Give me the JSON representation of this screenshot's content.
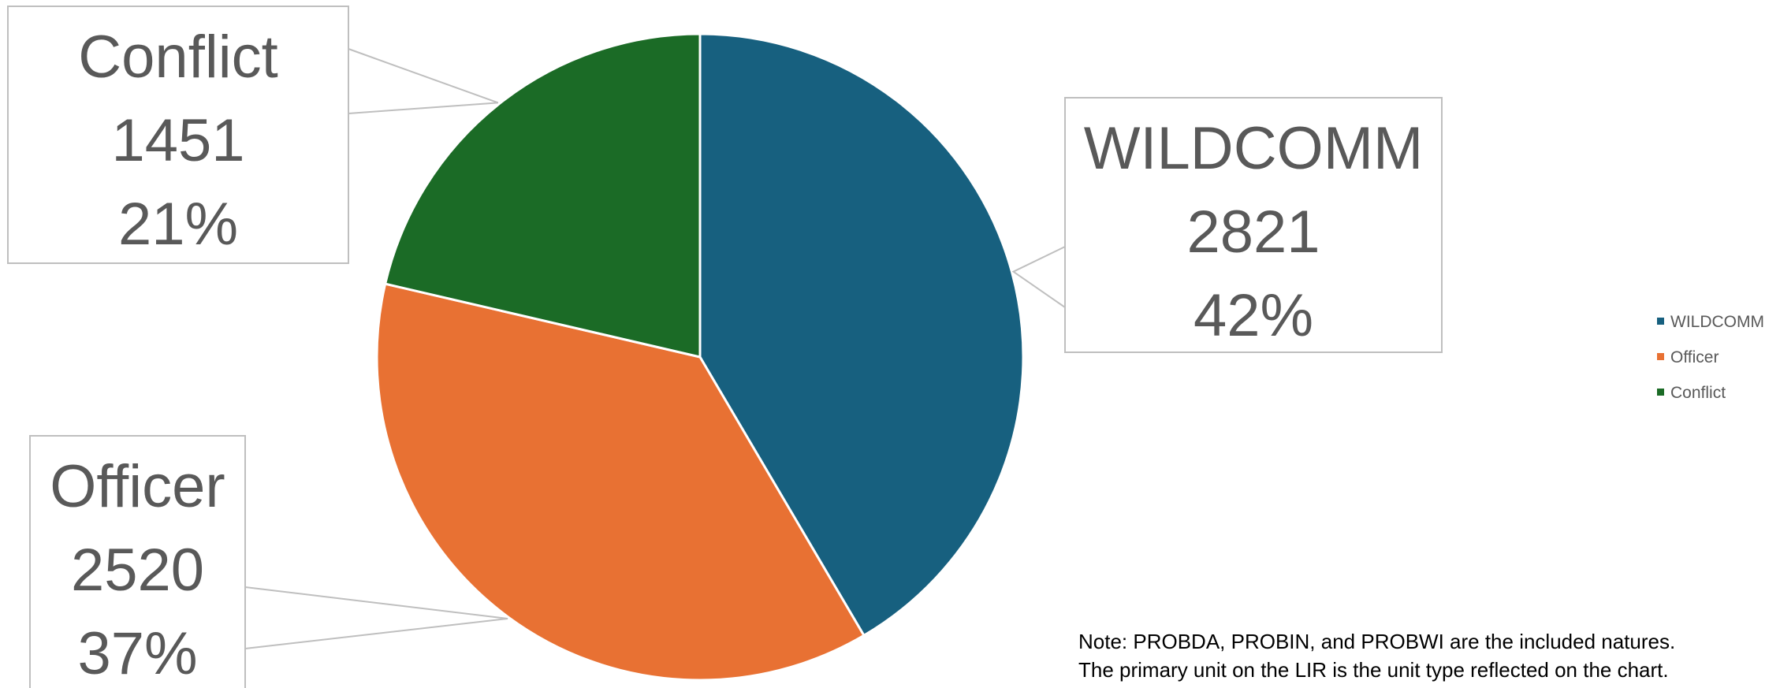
{
  "chart_data": {
    "type": "pie",
    "title": "",
    "slices": [
      {
        "label": "WILDCOMM",
        "value": 2821,
        "percent": "42%",
        "color": "#17607F"
      },
      {
        "label": "Officer",
        "value": 2520,
        "percent": "37%",
        "color": "#E87133"
      },
      {
        "label": "Conflict",
        "value": 1451,
        "percent": "21%",
        "color": "#1B6B26"
      }
    ],
    "legend": {
      "placement": "right",
      "entries": [
        "WILDCOMM",
        "Officer",
        "Conflict"
      ]
    },
    "start_angle": "12 o'clock, clockwise"
  },
  "note": {
    "line1": "Note: PROBDA, PROBIN, and PROBWI are the included natures.",
    "line2": "The primary unit on the LIR is the unit type reflected on the chart."
  }
}
